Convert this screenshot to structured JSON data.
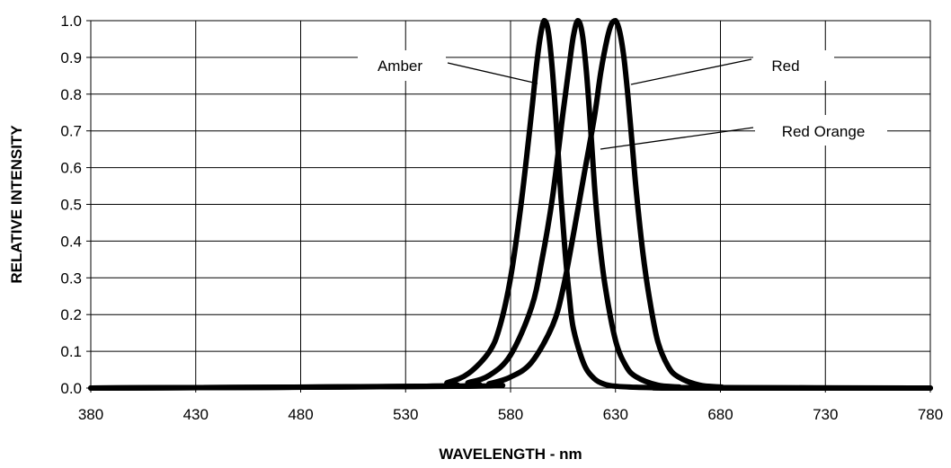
{
  "chart_data": {
    "type": "line",
    "title": "",
    "xlabel": "WAVELENGTH - nm",
    "ylabel": "RELATIVE INTENSITY",
    "xlim": [
      380,
      780
    ],
    "ylim": [
      0,
      1.0
    ],
    "x_ticks": [
      380,
      430,
      480,
      530,
      580,
      630,
      680,
      730,
      780
    ],
    "x_tick_labels": [
      "380",
      "430",
      "480",
      "530",
      "580",
      "630",
      "680",
      "730",
      "780"
    ],
    "y_ticks": [
      0,
      0.1,
      0.2,
      0.3,
      0.4,
      0.5,
      0.6,
      0.7,
      0.8,
      0.9,
      1.0
    ],
    "y_tick_labels": [
      "0.0",
      "0.1",
      "0.2",
      "0.3",
      "0.4",
      "0.5",
      "0.6",
      "0.7",
      "0.8",
      "0.9",
      "1.0"
    ],
    "grid": true,
    "legend": "none",
    "series": [
      {
        "name": "Amber",
        "color": "#000000",
        "x": [
          380,
          540,
          550,
          560,
          570,
          575,
          580,
          585,
          590,
          592,
          594,
          596,
          598,
          600,
          602,
          604,
          606,
          608,
          610,
          615,
          620,
          625,
          630,
          640,
          650,
          660,
          780
        ],
        "y": [
          0.0,
          0.005,
          0.015,
          0.04,
          0.1,
          0.17,
          0.3,
          0.5,
          0.75,
          0.86,
          0.95,
          1.0,
          0.97,
          0.86,
          0.7,
          0.52,
          0.37,
          0.25,
          0.16,
          0.065,
          0.025,
          0.01,
          0.005,
          0.002,
          0.001,
          0.0,
          0.0
        ]
      },
      {
        "name": "Red Orange",
        "color": "#000000",
        "x": [
          380,
          550,
          560,
          570,
          580,
          590,
          595,
          600,
          605,
          608,
          610,
          612,
          614,
          616,
          618,
          620,
          622,
          625,
          630,
          635,
          640,
          650,
          660,
          670,
          780
        ],
        "y": [
          0.0,
          0.005,
          0.015,
          0.035,
          0.09,
          0.22,
          0.35,
          0.52,
          0.75,
          0.88,
          0.96,
          1.0,
          0.97,
          0.87,
          0.72,
          0.55,
          0.42,
          0.28,
          0.13,
          0.06,
          0.03,
          0.008,
          0.003,
          0.001,
          0.0
        ]
      },
      {
        "name": "Red",
        "color": "#000000",
        "x": [
          380,
          560,
          570,
          580,
          590,
          600,
          605,
          610,
          615,
          620,
          623,
          626,
          628,
          630,
          632,
          634,
          636,
          638,
          640,
          643,
          646,
          650,
          655,
          660,
          670,
          680,
          690,
          780
        ],
        "y": [
          0.0,
          0.005,
          0.012,
          0.03,
          0.07,
          0.17,
          0.27,
          0.42,
          0.58,
          0.74,
          0.86,
          0.95,
          0.99,
          1.0,
          0.97,
          0.9,
          0.79,
          0.66,
          0.53,
          0.37,
          0.25,
          0.13,
          0.06,
          0.03,
          0.008,
          0.003,
          0.001,
          0.0
        ]
      }
    ],
    "annotations": [
      {
        "text": "Amber",
        "series": "Amber"
      },
      {
        "text": "Red",
        "series": "Red"
      },
      {
        "text": "Red Orange",
        "series": "Red Orange"
      }
    ]
  }
}
